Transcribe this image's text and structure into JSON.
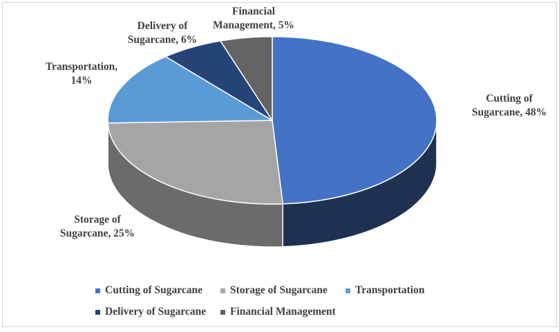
{
  "page": {
    "background": "#ffffff",
    "border_color": "#d3d3d3"
  },
  "chart_data": {
    "type": "pie",
    "style": "3d",
    "title": "",
    "start_angle_deg": 0,
    "direction": "clockwise",
    "legend_position": "bottom",
    "label_text_color": "#3f3f3f",
    "slice_separator_color": "#ffffff",
    "slices": [
      {
        "name": "Cutting of Sugarcane",
        "value": 48,
        "color": "#4472C4",
        "side_color": "#1F3150",
        "label_line1": "Cutting of",
        "label_line2": "Sugarcane, 48%"
      },
      {
        "name": "Storage of Sugarcane",
        "value": 25,
        "color": "#A5A5A5",
        "side_color": "#6B6B6B",
        "label_line1": "Storage of",
        "label_line2": "Sugarcane, 25%"
      },
      {
        "name": "Transportation",
        "value": 14,
        "color": "#5B9BD5",
        "side_color": "#3B6E9C",
        "label_line1": "Transportation,",
        "label_line2": "14%"
      },
      {
        "name": "Delivery of Sugarcane",
        "value": 6,
        "color": "#264478",
        "side_color": "#16294A",
        "label_line1": "Delivery of",
        "label_line2": "Sugarcane, 6%"
      },
      {
        "name": "Financial Management",
        "value": 5,
        "color": "#636363",
        "side_color": "#3F3F3F",
        "label_line1": "Financial",
        "label_line2": "Management, 5%"
      }
    ]
  }
}
